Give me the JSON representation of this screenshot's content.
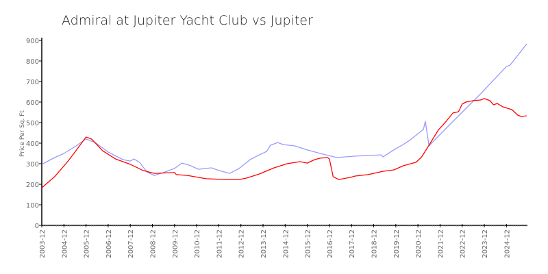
{
  "chart_data": {
    "type": "line",
    "title": "Admiral at Jupiter Yacht Club vs Jupiter",
    "xlabel": "",
    "ylabel": "Price Per Sq. Ft",
    "ylim": [
      0,
      900
    ],
    "xlim": [
      "2003-12",
      "2025-12"
    ],
    "yticks": [
      "0",
      "100",
      "200",
      "300",
      "400",
      "500",
      "600",
      "700",
      "800",
      "900"
    ],
    "xticks": [
      "2003-12",
      "2004-12",
      "2005-12",
      "2006-12",
      "2007-12",
      "2008-12",
      "2009-12",
      "2010-12",
      "2011-12",
      "2012-12",
      "2013-12",
      "2014-12",
      "2015-12",
      "2016-12",
      "2017-12",
      "2018-12",
      "2019-12",
      "2020-12",
      "2021-12",
      "2022-12",
      "2023-12",
      "2024-12"
    ],
    "grid": false,
    "legend": "none",
    "series": [
      {
        "color": "#ff0000",
        "points": [
          [
            "2003-12",
            183
          ],
          [
            "2004-07",
            237
          ],
          [
            "2005-02",
            310
          ],
          [
            "2005-06",
            357
          ],
          [
            "2005-12",
            430
          ],
          [
            "2006-03",
            420
          ],
          [
            "2006-09",
            363
          ],
          [
            "2007-04",
            323
          ],
          [
            "2007-12",
            297
          ],
          [
            "2008-07",
            267
          ],
          [
            "2009-01",
            253
          ],
          [
            "2009-12",
            257
          ],
          [
            "2010-01",
            247
          ],
          [
            "2010-07",
            243
          ],
          [
            "2011-05",
            227
          ],
          [
            "2012-04",
            223
          ],
          [
            "2012-11",
            223
          ],
          [
            "2013-03",
            230
          ],
          [
            "2013-10",
            250
          ],
          [
            "2014-06",
            280
          ],
          [
            "2015-01",
            300
          ],
          [
            "2015-08",
            310
          ],
          [
            "2015-12",
            303
          ],
          [
            "2016-04",
            320
          ],
          [
            "2016-07",
            327
          ],
          [
            "2016-11",
            330
          ],
          [
            "2016-12",
            323
          ],
          [
            "2017-01",
            280
          ],
          [
            "2017-02",
            237
          ],
          [
            "2017-05",
            223
          ],
          [
            "2017-11",
            233
          ],
          [
            "2018-02",
            240
          ],
          [
            "2018-09",
            247
          ],
          [
            "2019-05",
            263
          ],
          [
            "2019-11",
            270
          ],
          [
            "2020-04",
            290
          ],
          [
            "2020-11",
            307
          ],
          [
            "2021-02",
            333
          ],
          [
            "2021-06",
            390
          ],
          [
            "2021-11",
            463
          ],
          [
            "2022-03",
            503
          ],
          [
            "2022-07",
            547
          ],
          [
            "2022-10",
            553
          ],
          [
            "2022-12",
            590
          ],
          [
            "2023-02",
            600
          ],
          [
            "2023-06",
            607
          ],
          [
            "2023-10",
            610
          ],
          [
            "2023-12",
            617
          ],
          [
            "2024-03",
            607
          ],
          [
            "2024-05",
            587
          ],
          [
            "2024-07",
            593
          ],
          [
            "2024-10",
            577
          ],
          [
            "2025-03",
            563
          ],
          [
            "2025-06",
            537
          ],
          [
            "2025-08",
            530
          ],
          [
            "2025-11",
            533
          ]
        ]
      },
      {
        "color": "#9999ff",
        "points": [
          [
            "2003-12",
            297
          ],
          [
            "2004-07",
            330
          ],
          [
            "2004-12",
            350
          ],
          [
            "2005-06",
            383
          ],
          [
            "2005-12",
            420
          ],
          [
            "2006-05",
            403
          ],
          [
            "2006-12",
            357
          ],
          [
            "2007-08",
            320
          ],
          [
            "2007-12",
            313
          ],
          [
            "2008-02",
            323
          ],
          [
            "2008-05",
            307
          ],
          [
            "2008-09",
            260
          ],
          [
            "2009-01",
            243
          ],
          [
            "2009-06",
            257
          ],
          [
            "2009-12",
            277
          ],
          [
            "2010-04",
            303
          ],
          [
            "2010-08",
            293
          ],
          [
            "2011-01",
            273
          ],
          [
            "2011-08",
            280
          ],
          [
            "2011-12",
            267
          ],
          [
            "2012-06",
            253
          ],
          [
            "2012-11",
            277
          ],
          [
            "2013-05",
            320
          ],
          [
            "2013-10",
            343
          ],
          [
            "2014-02",
            360
          ],
          [
            "2014-04",
            390
          ],
          [
            "2014-08",
            403
          ],
          [
            "2014-11",
            393
          ],
          [
            "2015-05",
            387
          ],
          [
            "2015-12",
            367
          ],
          [
            "2016-07",
            350
          ],
          [
            "2017-04",
            330
          ],
          [
            "2018-02",
            337
          ],
          [
            "2019-04",
            343
          ],
          [
            "2019-05",
            333
          ],
          [
            "2019-12",
            373
          ],
          [
            "2020-04",
            393
          ],
          [
            "2020-08",
            417
          ],
          [
            "2021-03",
            467
          ],
          [
            "2021-04",
            507
          ],
          [
            "2021-06",
            387
          ],
          [
            "2022-03",
            470
          ],
          [
            "2023-10",
            640
          ],
          [
            "2024-12",
            773
          ],
          [
            "2025-02",
            780
          ],
          [
            "2025-11",
            883
          ]
        ]
      }
    ]
  }
}
